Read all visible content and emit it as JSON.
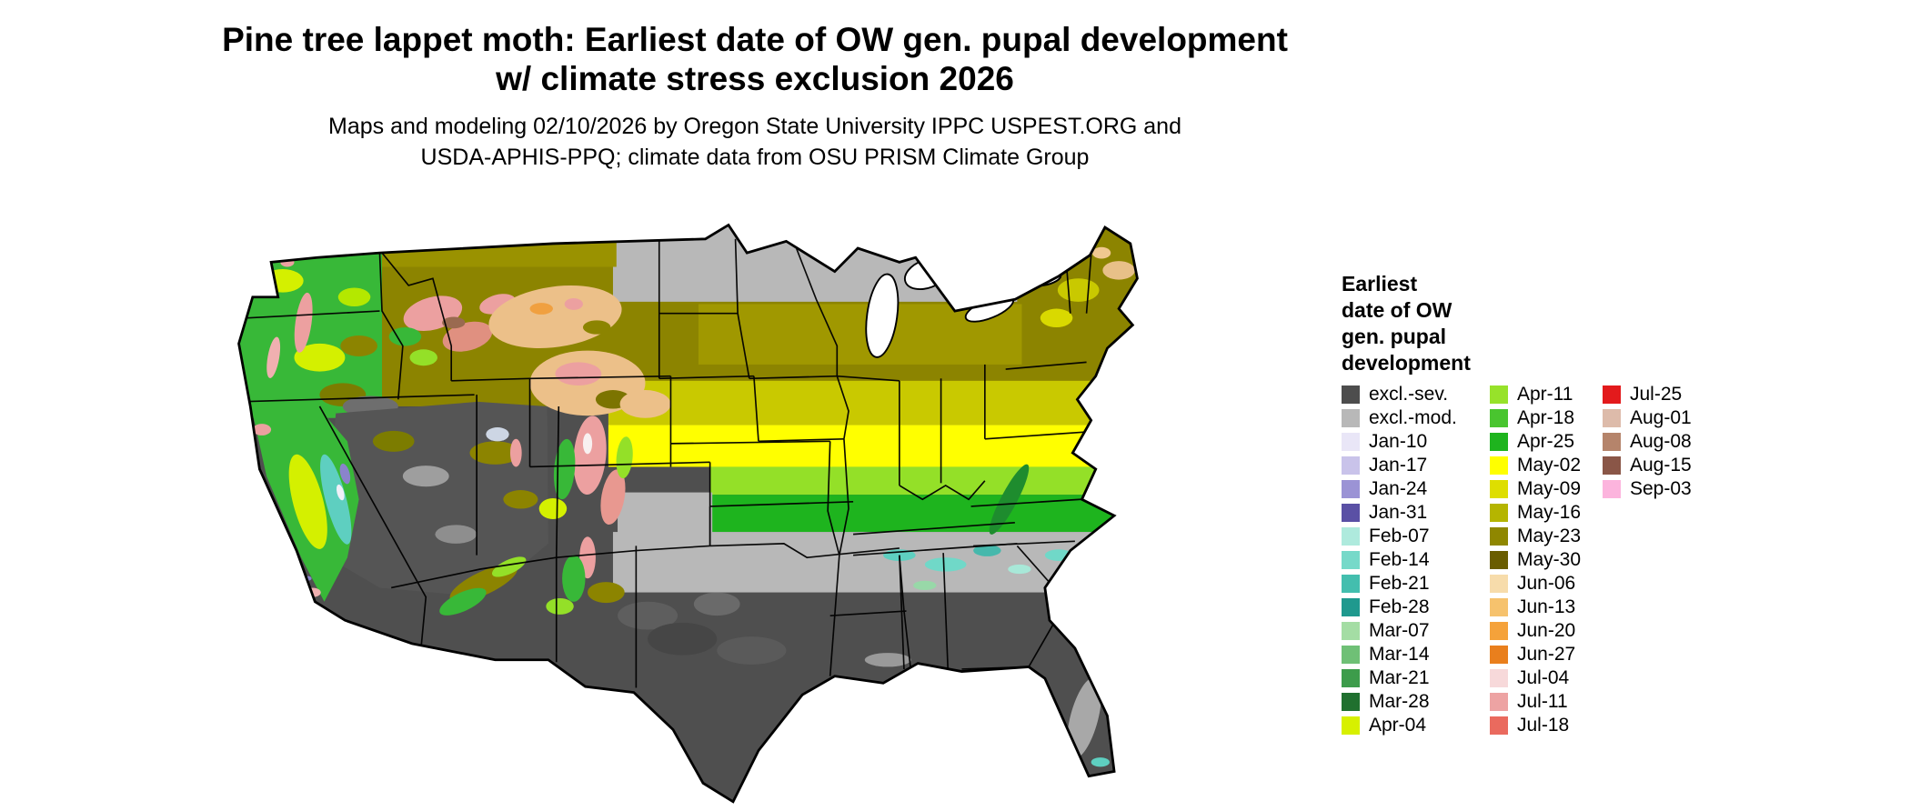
{
  "title": {
    "line1": "Pine tree lappet moth: Earliest date of OW gen. pupal development",
    "line2": "w/ climate stress exclusion 2026"
  },
  "subtitle": {
    "line1": "Maps and modeling 02/10/2026 by Oregon State University IPPC USPEST.ORG and",
    "line2": "USDA-APHIS-PPQ; climate data from OSU PRISM Climate Group"
  },
  "legend": {
    "title_lines": [
      "Earliest",
      "date of OW",
      "gen. pupal",
      "development"
    ],
    "columns": [
      {
        "items": [
          {
            "label": "excl.-sev.",
            "color": "#4d4d4d"
          },
          {
            "label": "excl.-mod.",
            "color": "#b8b8b8"
          },
          {
            "label": "Jan-10",
            "color": "#e9e6f7"
          },
          {
            "label": "Jan-17",
            "color": "#c9c3ea"
          },
          {
            "label": "Jan-24",
            "color": "#9b93d5"
          },
          {
            "label": "Jan-31",
            "color": "#5a50a5"
          },
          {
            "label": "Feb-07",
            "color": "#aeeadd"
          },
          {
            "label": "Feb-14",
            "color": "#76d9c9"
          },
          {
            "label": "Feb-21",
            "color": "#43beae"
          },
          {
            "label": "Feb-28",
            "color": "#1f998e"
          },
          {
            "label": "Mar-07",
            "color": "#a4dda4"
          },
          {
            "label": "Mar-14",
            "color": "#6fc076"
          },
          {
            "label": "Mar-21",
            "color": "#3d9c4b"
          },
          {
            "label": "Mar-28",
            "color": "#20702f"
          },
          {
            "label": "Apr-04",
            "color": "#d7f000"
          }
        ]
      },
      {
        "items": [
          {
            "label": "Apr-11",
            "color": "#97e22a"
          },
          {
            "label": "Apr-18",
            "color": "#49c52f"
          },
          {
            "label": "Apr-25",
            "color": "#1eb41e"
          },
          {
            "label": "May-02",
            "color": "#ffff00"
          },
          {
            "label": "May-09",
            "color": "#dede00"
          },
          {
            "label": "May-16",
            "color": "#b5b500"
          },
          {
            "label": "May-23",
            "color": "#8f8700"
          },
          {
            "label": "May-30",
            "color": "#6a5d00"
          },
          {
            "label": "Jun-06",
            "color": "#f7dcab"
          },
          {
            "label": "Jun-13",
            "color": "#f6c26d"
          },
          {
            "label": "Jun-20",
            "color": "#f5a23a"
          },
          {
            "label": "Jun-27",
            "color": "#e97f1d"
          },
          {
            "label": "Jul-04",
            "color": "#f7d9da"
          },
          {
            "label": "Jul-11",
            "color": "#eda3a3"
          },
          {
            "label": "Jul-18",
            "color": "#ea6a5e"
          }
        ]
      },
      {
        "items": [
          {
            "label": "Jul-25",
            "color": "#e31a1c"
          },
          {
            "label": "Aug-01",
            "color": "#ddbbaa"
          },
          {
            "label": "Aug-08",
            "color": "#b5846b"
          },
          {
            "label": "Aug-15",
            "color": "#8a5647"
          },
          {
            "label": "Sep-03",
            "color": "#fcb4dd"
          }
        ]
      }
    ]
  }
}
